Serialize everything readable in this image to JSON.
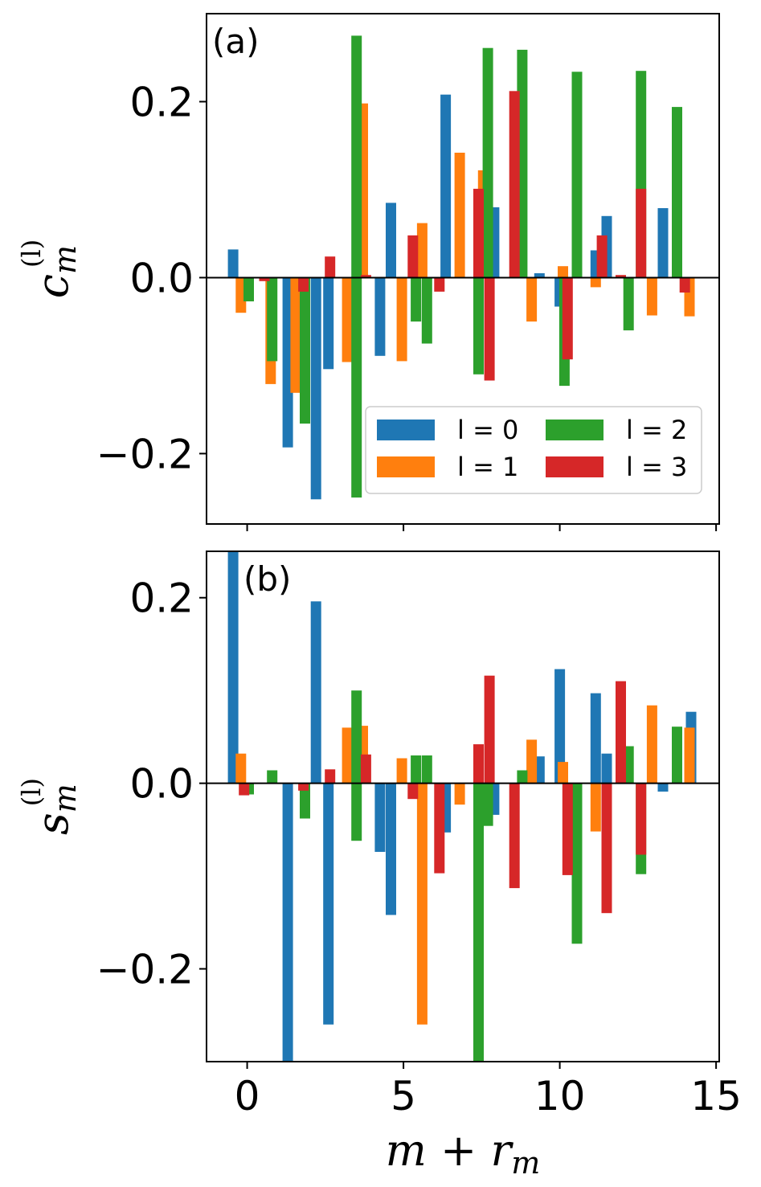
{
  "chart_data": [
    {
      "type": "bar",
      "panel_label": "(a)",
      "ylabel": "c_m^(l)",
      "ylabel_base": "c",
      "ylabel_sub": "m",
      "ylabel_sup": "(l)",
      "xlim": [
        -1.3,
        15.1
      ],
      "ylim": [
        -0.28,
        0.3
      ],
      "yticks": [
        -0.2,
        0.0,
        0.2
      ],
      "ytick_labels": [
        "−0.2",
        "0.0",
        "0.2"
      ],
      "xticks": [
        0,
        5,
        10,
        15
      ],
      "show_xtick_labels": false,
      "baseline": true,
      "legend": {
        "placement": "lower-right",
        "columns": 2,
        "entries": [
          {
            "series": 0,
            "label": "l = 0"
          },
          {
            "series": 2,
            "label": "l = 2"
          },
          {
            "series": 1,
            "label": "l = 1"
          },
          {
            "series": 3,
            "label": "l = 3"
          }
        ]
      },
      "series": [
        {
          "color": "#1f77b4",
          "x": [
            -0.45,
            1.3,
            2.2,
            2.6,
            4.25,
            4.6,
            6.35,
            7.9,
            9.35,
            10.0,
            11.15,
            11.5,
            13.3
          ],
          "values": [
            0.032,
            -0.193,
            -0.252,
            -0.104,
            -0.089,
            0.085,
            0.208,
            0.08,
            0.005,
            -0.033,
            0.031,
            0.07,
            0.079
          ]
        },
        {
          "color": "#ff7f0e",
          "x": [
            -0.2,
            0.75,
            1.55,
            3.2,
            3.7,
            4.95,
            5.6,
            6.8,
            7.55,
            9.1,
            10.1,
            11.15,
            12.95,
            14.15
          ],
          "values": [
            -0.04,
            -0.121,
            -0.131,
            -0.096,
            0.198,
            -0.095,
            0.062,
            0.142,
            0.122,
            -0.05,
            0.013,
            -0.011,
            -0.043,
            -0.044
          ]
        },
        {
          "color": "#2ca02c",
          "x": [
            0.05,
            0.8,
            1.85,
            3.5,
            3.5,
            5.4,
            5.75,
            7.4,
            7.7,
            8.8,
            10.15,
            10.55,
            12.2,
            12.6,
            13.75
          ],
          "values": [
            -0.027,
            -0.095,
            -0.166,
            0.275,
            -0.25,
            -0.05,
            -0.075,
            -0.11,
            0.261,
            0.259,
            -0.123,
            0.234,
            -0.06,
            0.235,
            0.194
          ]
        },
        {
          "color": "#d62728",
          "x": [
            0.55,
            1.8,
            2.65,
            3.8,
            5.3,
            6.15,
            7.4,
            7.75,
            8.55,
            10.25,
            11.35,
            11.95,
            12.6,
            14.0
          ],
          "values": [
            -0.004,
            -0.016,
            0.024,
            0.003,
            0.048,
            -0.016,
            0.101,
            -0.117,
            0.212,
            -0.093,
            0.048,
            0.003,
            0.101,
            -0.017
          ]
        }
      ]
    },
    {
      "type": "bar",
      "panel_label": "(b)",
      "ylabel": "s_m^(l)",
      "ylabel_base": "s",
      "ylabel_sub": "m",
      "ylabel_sup": "(l)",
      "xlabel": "m + r_m",
      "xlabel_parts": [
        "m",
        " + ",
        "r",
        "m"
      ],
      "xlim": [
        -1.3,
        15.1
      ],
      "ylim": [
        -0.3,
        0.25
      ],
      "yticks": [
        -0.2,
        0.0,
        0.2
      ],
      "ytick_labels": [
        "−0.2",
        "0.0",
        "0.2"
      ],
      "xticks": [
        0,
        5,
        10,
        15
      ],
      "xtick_labels": [
        "0",
        "5",
        "10",
        "15"
      ],
      "show_xtick_labels": true,
      "baseline": true,
      "series": [
        {
          "color": "#1f77b4",
          "x": [
            -0.45,
            1.3,
            2.2,
            2.6,
            4.25,
            4.6,
            6.35,
            7.9,
            9.35,
            10.0,
            11.15,
            11.5,
            13.3,
            14.2
          ],
          "values": [
            0.25,
            -0.3,
            0.196,
            -0.26,
            -0.074,
            -0.142,
            -0.053,
            -0.034,
            0.029,
            0.123,
            0.097,
            0.032,
            -0.009,
            0.077
          ]
        },
        {
          "color": "#ff7f0e",
          "x": [
            -0.2,
            3.2,
            3.7,
            4.95,
            5.6,
            6.8,
            9.1,
            10.1,
            11.15,
            12.95,
            14.15
          ],
          "values": [
            0.032,
            0.06,
            0.062,
            0.027,
            -0.26,
            -0.023,
            0.047,
            0.023,
            -0.052,
            0.084,
            0.06
          ]
        },
        {
          "color": "#2ca02c",
          "x": [
            0.05,
            0.8,
            1.85,
            3.5,
            3.5,
            5.4,
            5.75,
            7.4,
            7.7,
            8.8,
            10.55,
            12.2,
            12.6,
            13.75
          ],
          "values": [
            -0.012,
            0.014,
            -0.038,
            0.1,
            -0.062,
            0.03,
            0.03,
            -0.3,
            -0.046,
            0.014,
            -0.173,
            0.04,
            -0.098,
            0.061
          ]
        },
        {
          "color": "#d62728",
          "x": [
            -0.1,
            1.8,
            2.65,
            3.8,
            5.3,
            6.15,
            7.4,
            7.75,
            8.55,
            10.25,
            11.5,
            11.95,
            12.6
          ],
          "values": [
            -0.013,
            -0.008,
            0.015,
            0.031,
            -0.017,
            -0.097,
            0.042,
            0.116,
            -0.113,
            -0.099,
            -0.14,
            0.11,
            -0.077
          ]
        }
      ]
    }
  ]
}
